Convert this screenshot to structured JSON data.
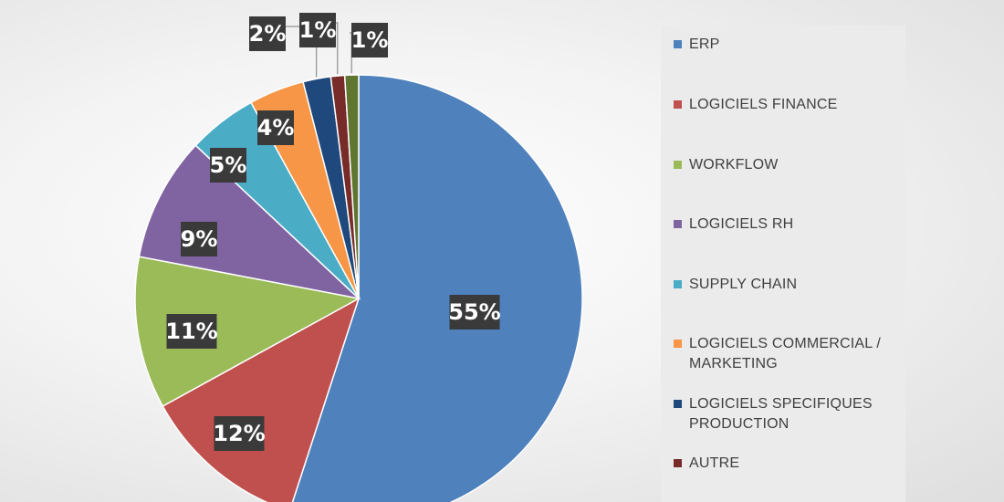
{
  "chart_data": {
    "type": "pie",
    "title": "",
    "slices": [
      {
        "label": "ERP",
        "value": 55,
        "display": "55%",
        "color": "#4f81bd"
      },
      {
        "label": "LOGICIELS FINANCE",
        "value": 12,
        "display": "12%",
        "color": "#c0504d"
      },
      {
        "label": "WORKFLOW",
        "value": 11,
        "display": "11%",
        "color": "#9bbb59"
      },
      {
        "label": "LOGICIELS RH",
        "value": 9,
        "display": "9%",
        "color": "#8064a2"
      },
      {
        "label": "SUPPLY CHAIN",
        "value": 5,
        "display": "5%",
        "color": "#4bacc6"
      },
      {
        "label": "LOGICIELS COMMERCIAL / MARKETING",
        "value": 4,
        "display": "4%",
        "color": "#f79646"
      },
      {
        "label": "LOGICIELS SPECIFIQUES PRODUCTION",
        "value": 2,
        "display": "2%",
        "color": "#1f497d"
      },
      {
        "label": "AUTRE",
        "value": 1,
        "display": "1%",
        "color": "#772c2a"
      },
      {
        "label": "",
        "value": 1,
        "display": "1%",
        "color": "#5f7530"
      }
    ],
    "legend_position": "right"
  },
  "legend": {
    "items": [
      {
        "label": "ERP",
        "color": "#4f81bd"
      },
      {
        "label": "LOGICIELS FINANCE",
        "color": "#c0504d"
      },
      {
        "label": "WORKFLOW",
        "color": "#9bbb59"
      },
      {
        "label": "LOGICIELS RH",
        "color": "#8064a2"
      },
      {
        "label": "SUPPLY CHAIN",
        "color": "#4bacc6"
      },
      {
        "label": "LOGICIELS COMMERCIAL / MARKETING",
        "color": "#f79646"
      },
      {
        "label": "LOGICIELS SPECIFIQUES PRODUCTION",
        "color": "#1f497d"
      },
      {
        "label": "AUTRE",
        "color": "#772c2a"
      }
    ]
  }
}
